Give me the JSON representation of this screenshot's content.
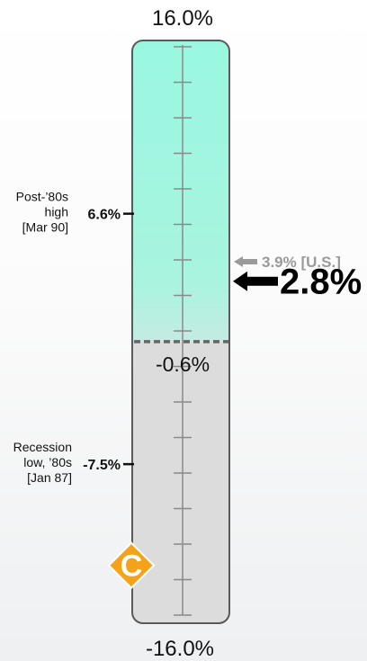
{
  "chart_data": {
    "type": "gauge",
    "scale_max": 16.0,
    "scale_min": -16.0,
    "max_label": "16.0%",
    "min_label": "-16.0%",
    "threshold": {
      "value": -0.6,
      "label": "-0.6%"
    },
    "current": {
      "value": 2.8,
      "label": "2.8%"
    },
    "us_reference": {
      "value": 3.9,
      "label": "3.9% [U.S.]"
    },
    "high_marker": {
      "value": 6.6,
      "label": "6.6%",
      "caption": [
        "Post-’80s",
        "high",
        "[Mar 90]"
      ]
    },
    "low_marker": {
      "value": -7.5,
      "label": "-7.5%",
      "caption": [
        "Recession",
        "low, ’80s",
        "[Jan 87]"
      ]
    },
    "grade": {
      "letter": "C",
      "value": -13.2
    },
    "tick_step": 2.0,
    "colors": {
      "upper_fill": "#99f7e0",
      "lower_fill": "#dcdcdc",
      "tube_border": "#5a5a5a",
      "ticks": "#8a8a8a",
      "us_arrow": "#9a9a9a",
      "current_arrow": "#000000",
      "grade_badge": "#f5a21b"
    }
  }
}
